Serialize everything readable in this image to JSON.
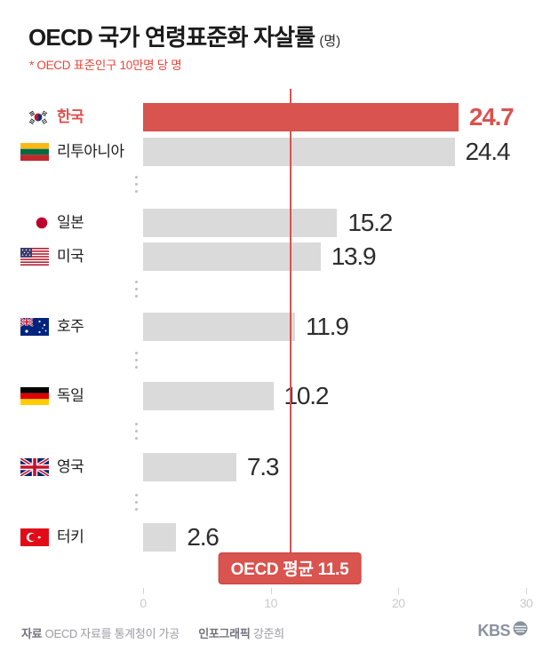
{
  "title": {
    "text": "OECD 국가 연령표준화 자살률",
    "unit": "(명)"
  },
  "subtitle": "* OECD 표준인구 10만명 당 명",
  "chart_data": {
    "type": "bar",
    "orientation": "horizontal",
    "title": "OECD 국가 연령표준화 자살률 (명)",
    "note": "* OECD 표준인구 10만명 당 명",
    "categories": [
      "한국",
      "리투아니아",
      "일본",
      "미국",
      "호주",
      "독일",
      "영국",
      "터키"
    ],
    "values": [
      24.7,
      24.4,
      15.2,
      13.9,
      11.9,
      10.2,
      7.3,
      2.6
    ],
    "flags": [
      "kr",
      "lt",
      "jp",
      "us",
      "au",
      "de",
      "gb",
      "tr"
    ],
    "flag_icon_names": [
      "korea-flag-icon",
      "lithuania-flag-icon",
      "japan-flag-icon",
      "usa-flag-icon",
      "australia-flag-icon",
      "germany-flag-icon",
      "uk-flag-icon",
      "turkey-flag-icon"
    ],
    "highlight_index": 0,
    "reference_line": {
      "value": 11.5,
      "label": "OECD 평균 11.5"
    },
    "x_ticks": [
      0,
      10,
      20,
      30
    ],
    "xlim": [
      0,
      30
    ],
    "grid": false,
    "legend": false,
    "colors": {
      "highlight": "#d9534f",
      "bar": "#dadada",
      "reference": "#d9534f",
      "subtitle": "#e8463a"
    }
  },
  "footer": {
    "source_label": "자료",
    "source_text": "OECD 자료를 통계청이 가공",
    "credit_label": "인포그래픽",
    "credit_text": "강준희",
    "logo_text": "KBS"
  }
}
